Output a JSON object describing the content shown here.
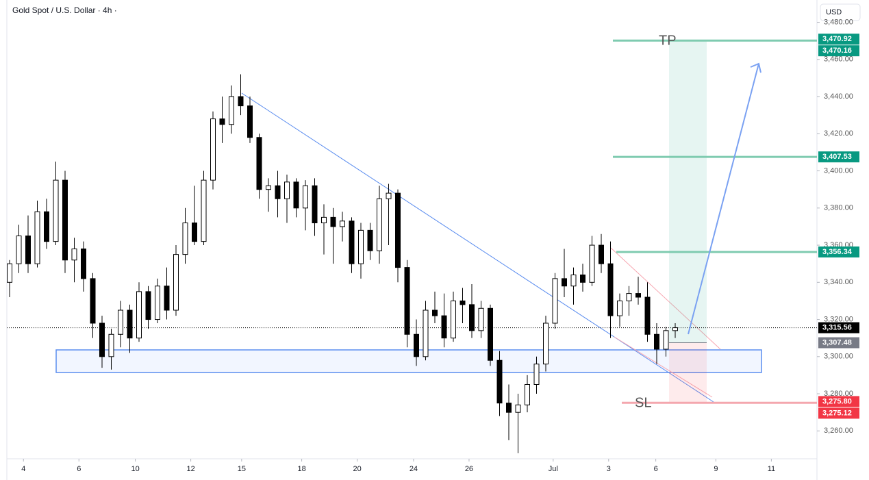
{
  "chart_data": {
    "type": "candlestick",
    "title": "Gold Spot / U.S. Dollar · 4h ·",
    "currency": "USD",
    "up_color": "#ffffff",
    "down_color": "#000000",
    "ylim": [
      3245,
      3492
    ],
    "yticks": [
      {
        "value": 3260,
        "label": "3,260.00"
      },
      {
        "value": 3280,
        "label": "3,280.00"
      },
      {
        "value": 3300,
        "label": "3,300.00"
      },
      {
        "value": 3320,
        "label": "3,320.00"
      },
      {
        "value": 3340,
        "label": "3,340.00"
      },
      {
        "value": 3360,
        "label": "3,360.00"
      },
      {
        "value": 3380,
        "label": "3,380.00"
      },
      {
        "value": 3400,
        "label": "3,400.00"
      },
      {
        "value": 3420,
        "label": "3,420.00"
      },
      {
        "value": 3440,
        "label": "3,440.00"
      },
      {
        "value": 3460,
        "label": "3,460.00"
      },
      {
        "value": 3480,
        "label": "3,480.00"
      }
    ],
    "xlim": [
      -0.5,
      87
    ],
    "xticks": [
      {
        "value": 1.5,
        "label": "4"
      },
      {
        "value": 7.5,
        "label": "6"
      },
      {
        "value": 13.6,
        "label": "10"
      },
      {
        "value": 19.6,
        "label": "12"
      },
      {
        "value": 25.1,
        "label": "15"
      },
      {
        "value": 31.6,
        "label": "18"
      },
      {
        "value": 37.6,
        "label": "20"
      },
      {
        "value": 43.7,
        "label": "24"
      },
      {
        "value": 49.7,
        "label": "26"
      },
      {
        "value": 58.8,
        "label": "Jul"
      },
      {
        "value": 64.8,
        "label": "3"
      },
      {
        "value": 69.9,
        "label": "6"
      },
      {
        "value": 76.4,
        "label": "9"
      },
      {
        "value": 82.4,
        "label": "11"
      }
    ],
    "candles": [
      [
        3340,
        3352,
        3332,
        3350
      ],
      [
        3350,
        3371,
        3345,
        3365
      ],
      [
        3365,
        3376,
        3345,
        3350
      ],
      [
        3350,
        3384,
        3348,
        3378
      ],
      [
        3378,
        3385,
        3358,
        3362
      ],
      [
        3362,
        3405,
        3360,
        3395
      ],
      [
        3395,
        3400,
        3345,
        3352
      ],
      [
        3352,
        3364,
        3340,
        3358
      ],
      [
        3358,
        3362,
        3335,
        3342
      ],
      [
        3342,
        3345,
        3310,
        3318
      ],
      [
        3318,
        3322,
        3294,
        3300
      ],
      [
        3300,
        3315,
        3293,
        3312
      ],
      [
        3312,
        3330,
        3305,
        3325
      ],
      [
        3325,
        3328,
        3302,
        3310
      ],
      [
        3310,
        3340,
        3308,
        3335
      ],
      [
        3335,
        3338,
        3315,
        3320
      ],
      [
        3320,
        3342,
        3318,
        3338
      ],
      [
        3338,
        3348,
        3320,
        3325
      ],
      [
        3325,
        3360,
        3322,
        3355
      ],
      [
        3355,
        3380,
        3350,
        3372
      ],
      [
        3372,
        3392,
        3360,
        3362
      ],
      [
        3362,
        3400,
        3360,
        3395
      ],
      [
        3395,
        3432,
        3390,
        3428
      ],
      [
        3428,
        3440,
        3415,
        3425
      ],
      [
        3425,
        3446,
        3420,
        3440
      ],
      [
        3440,
        3452,
        3430,
        3435
      ],
      [
        3435,
        3440,
        3415,
        3418
      ],
      [
        3418,
        3420,
        3385,
        3390
      ],
      [
        3390,
        3396,
        3378,
        3392
      ],
      [
        3392,
        3400,
        3375,
        3385
      ],
      [
        3385,
        3398,
        3372,
        3394
      ],
      [
        3394,
        3396,
        3375,
        3380
      ],
      [
        3380,
        3395,
        3368,
        3392
      ],
      [
        3392,
        3396,
        3365,
        3372
      ],
      [
        3372,
        3382,
        3355,
        3375
      ],
      [
        3375,
        3380,
        3350,
        3370
      ],
      [
        3370,
        3378,
        3362,
        3373
      ],
      [
        3373,
        3375,
        3345,
        3350
      ],
      [
        3350,
        3372,
        3342,
        3368
      ],
      [
        3368,
        3372,
        3352,
        3357
      ],
      [
        3357,
        3392,
        3350,
        3385
      ],
      [
        3385,
        3393,
        3360,
        3388
      ],
      [
        3388,
        3390,
        3340,
        3348
      ],
      [
        3348,
        3352,
        3305,
        3312
      ],
      [
        3312,
        3320,
        3295,
        3300
      ],
      [
        3300,
        3330,
        3298,
        3325
      ],
      [
        3325,
        3335,
        3318,
        3322
      ],
      [
        3322,
        3334,
        3305,
        3310
      ],
      [
        3310,
        3335,
        3308,
        3330
      ],
      [
        3330,
        3337,
        3318,
        3328
      ],
      [
        3328,
        3339,
        3310,
        3314
      ],
      [
        3314,
        3330,
        3310,
        3326
      ],
      [
        3326,
        3328,
        3295,
        3298
      ],
      [
        3298,
        3303,
        3268,
        3275
      ],
      [
        3275,
        3285,
        3255,
        3270
      ],
      [
        3270,
        3280,
        3248,
        3274
      ],
      [
        3274,
        3290,
        3270,
        3285
      ],
      [
        3285,
        3300,
        3280,
        3296
      ],
      [
        3296,
        3322,
        3292,
        3318
      ],
      [
        3318,
        3345,
        3315,
        3342
      ],
      [
        3342,
        3358,
        3332,
        3338
      ],
      [
        3338,
        3348,
        3328,
        3344
      ],
      [
        3344,
        3350,
        3335,
        3340
      ],
      [
        3340,
        3365,
        3338,
        3360
      ],
      [
        3360,
        3366,
        3345,
        3350
      ],
      [
        3350,
        3362,
        3310,
        3322
      ],
      [
        3322,
        3334,
        3316,
        3330
      ],
      [
        3330,
        3338,
        3322,
        3334
      ],
      [
        3334,
        3343,
        3328,
        3332
      ],
      [
        3332,
        3340,
        3308,
        3312
      ],
      [
        3312,
        3318,
        3296,
        3304
      ],
      [
        3304,
        3316,
        3300,
        3314
      ],
      [
        3314,
        3318,
        3310,
        3315.56
      ]
    ],
    "price_labels": [
      {
        "value": 3470.92,
        "label": "3,470.92",
        "color": "#089981"
      },
      {
        "value": 3470.16,
        "label": "3,470.16",
        "color": "#089981",
        "line": "solid"
      },
      {
        "value": 3407.53,
        "label": "3,407.53",
        "color": "#089981",
        "line": "solid"
      },
      {
        "value": 3356.34,
        "label": "3,356.34",
        "color": "#089981",
        "line": "solid"
      },
      {
        "value": 3315.56,
        "label": "3,315.56",
        "color": "#000000",
        "line": "dotted"
      },
      {
        "value": 3307.48,
        "label": "3,307.48",
        "color": "#787b86"
      },
      {
        "value": 3275.8,
        "label": "3,275.80",
        "color": "#f23645"
      },
      {
        "value": 3275.12,
        "label": "3,275.12",
        "color": "#f23645",
        "line": "solid"
      }
    ],
    "tp_label": "TP",
    "sl_label": "SL"
  }
}
